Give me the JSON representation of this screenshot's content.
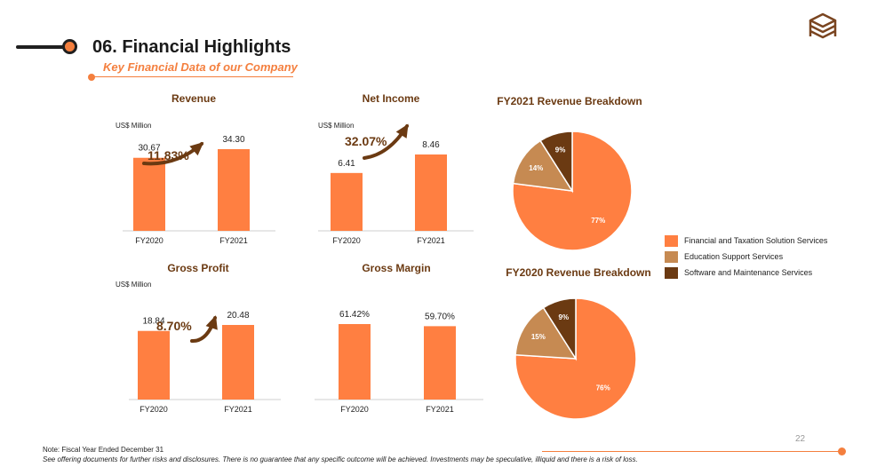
{
  "header": {
    "title": "06. Financial Highlights",
    "subtitle": "Key Financial Data of our Company"
  },
  "colors": {
    "bar": "#FF7F41",
    "arrow": "#6B3A12",
    "growth_text": "#6B3A12",
    "pie": [
      "#FF7F41",
      "#C68A52",
      "#6B3A12"
    ]
  },
  "chart_data": [
    {
      "type": "bar",
      "title": "Revenue",
      "unit": "US$ Million",
      "categories": [
        "FY2020",
        "FY2021"
      ],
      "values": [
        30.67,
        34.3
      ],
      "value_labels": [
        "30.67",
        "34.30"
      ],
      "growth": "11.83%"
    },
    {
      "type": "bar",
      "title": "Net Income",
      "unit": "US$ Million",
      "categories": [
        "FY2020",
        "FY2021"
      ],
      "values": [
        6.41,
        8.46
      ],
      "value_labels": [
        "6.41",
        "8.46"
      ],
      "growth": "32.07%"
    },
    {
      "type": "bar",
      "title": "Gross Profit",
      "unit": "US$ Million",
      "categories": [
        "FY2020",
        "FY2021"
      ],
      "values": [
        18.84,
        20.48
      ],
      "value_labels": [
        "18.84",
        "20.48"
      ],
      "growth": "8.70%"
    },
    {
      "type": "bar",
      "title": "Gross Margin",
      "unit": "",
      "categories": [
        "FY2020",
        "FY2021"
      ],
      "values": [
        61.42,
        59.7
      ],
      "value_labels": [
        "61.42%",
        "59.70%"
      ],
      "growth": ""
    },
    {
      "type": "pie",
      "title": "FY2021 Revenue Breakdown",
      "labels": [
        "Financial and Taxation Solution Services",
        "Education Support Services",
        "Software and Maintenance Services"
      ],
      "values": [
        77,
        14,
        9
      ],
      "value_labels": [
        "77%",
        "14%",
        "9%"
      ]
    },
    {
      "type": "pie",
      "title": "FY2020 Revenue Breakdown",
      "labels": [
        "Financial and Taxation Solution Services",
        "Education Support Services",
        "Software and Maintenance Services"
      ],
      "values": [
        76,
        15,
        9
      ],
      "value_labels": [
        "76%",
        "15%",
        "9%"
      ]
    }
  ],
  "legend": {
    "items": [
      "Financial and Taxation Solution Services",
      "Education Support Services",
      "Software and Maintenance Services"
    ]
  },
  "footer": {
    "page_number": "22",
    "note": "Note: Fiscal Year Ended December 31",
    "disclaimer": "See offering documents for further risks and disclosures. There is no guarantee that any specific outcome will be achieved. Investments may be speculative, illiquid and there is a risk of loss."
  }
}
